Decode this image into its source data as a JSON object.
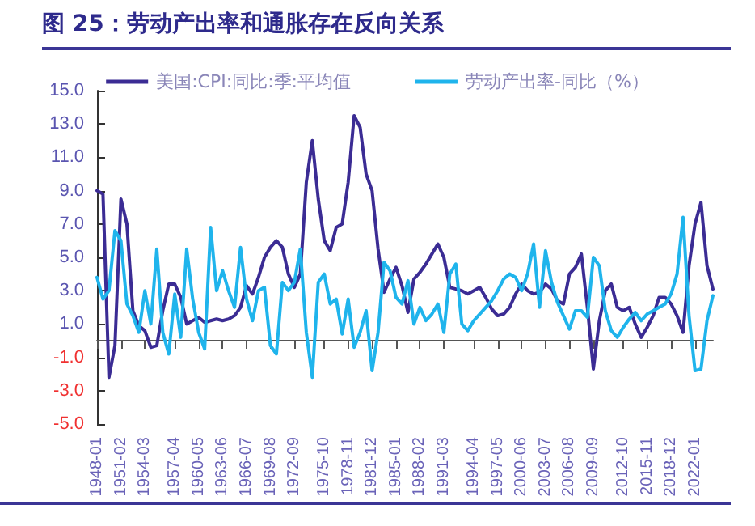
{
  "chart_data": {
    "type": "line",
    "title": "图 25：劳动产出率和通胀存在反向关系",
    "categories": [
      "1948-01",
      null,
      null,
      null,
      "1951-02",
      null,
      null,
      null,
      "1954-03",
      null,
      null,
      null,
      null,
      "1957-04",
      null,
      null,
      null,
      "1960-05",
      null,
      null,
      null,
      "1963-06",
      null,
      null,
      null,
      "1966-07",
      null,
      null,
      null,
      "1969-08",
      null,
      null,
      null,
      "1972-09",
      null,
      null,
      null,
      null,
      "1975-10",
      null,
      null,
      null,
      "1978-11",
      null,
      null,
      null,
      "1981-12",
      null,
      null,
      null,
      "1985-01",
      null,
      null,
      null,
      "1988-02",
      null,
      null,
      null,
      "1991-03",
      null,
      null,
      null,
      null,
      "1994-04",
      null,
      null,
      null,
      "1997-05",
      null,
      null,
      null,
      "2000-06",
      null,
      null,
      null,
      "2003-07",
      null,
      null,
      null,
      "2006-08",
      null,
      null,
      null,
      "2009-09",
      null,
      null,
      null,
      null,
      "2012-10",
      null,
      null,
      null,
      "2015-11",
      null,
      null,
      null,
      "2018-12",
      null,
      null,
      null,
      "2022-01",
      null,
      null,
      null
    ],
    "series": [
      {
        "name": "美国:CPI:同比:季:平均值",
        "color": "#3b2c94",
        "values": [
          9.0,
          8.8,
          -2.2,
          -0.3,
          8.5,
          7.0,
          1.8,
          0.9,
          0.6,
          -0.4,
          -0.3,
          1.8,
          3.4,
          3.4,
          2.6,
          1.0,
          1.2,
          1.4,
          1.1,
          1.2,
          1.3,
          1.2,
          1.3,
          1.5,
          2.0,
          3.3,
          2.8,
          3.8,
          5.0,
          5.6,
          6.0,
          5.6,
          4.0,
          3.2,
          4.0,
          9.5,
          12.0,
          8.5,
          6.0,
          5.4,
          6.8,
          7.0,
          9.5,
          13.5,
          12.8,
          10.0,
          9.0,
          5.5,
          2.9,
          3.7,
          4.4,
          3.3,
          1.7,
          3.7,
          4.1,
          4.6,
          5.2,
          5.8,
          5.0,
          3.2,
          3.1,
          3.0,
          2.8,
          3.0,
          3.2,
          2.6,
          1.9,
          1.5,
          1.6,
          2.0,
          2.8,
          3.4,
          3.0,
          2.8,
          2.9,
          3.4,
          3.1,
          2.4,
          2.2,
          4.0,
          4.4,
          5.2,
          2.0,
          -1.7,
          1.2,
          3.0,
          3.4,
          2.0,
          1.8,
          2.0,
          1.0,
          0.2,
          0.8,
          1.5,
          2.6,
          2.6,
          2.2,
          1.5,
          0.5,
          4.5,
          7.0,
          8.3,
          4.5,
          3.1
        ]
      },
      {
        "name": "劳动产出率-同比（%）",
        "color": "#1fb4ec",
        "values": [
          3.8,
          2.5,
          3.0,
          6.6,
          6.0,
          2.2,
          1.5,
          0.5,
          3.0,
          1.0,
          5.5,
          0.5,
          -0.8,
          2.8,
          0.2,
          5.5,
          2.5,
          0.5,
          -0.5,
          6.8,
          3.0,
          4.2,
          3.0,
          2.0,
          5.6,
          2.5,
          1.2,
          3.0,
          3.2,
          -0.3,
          -0.8,
          3.5,
          3.0,
          3.5,
          5.5,
          0.5,
          -2.2,
          3.5,
          4.0,
          2.2,
          2.5,
          0.4,
          2.5,
          -0.4,
          0.5,
          1.8,
          -1.8,
          0.5,
          4.7,
          4.2,
          2.6,
          2.2,
          3.6,
          1.0,
          2.0,
          1.2,
          1.6,
          2.2,
          0.5,
          4.0,
          4.6,
          1.0,
          0.6,
          1.2,
          1.6,
          2.0,
          2.4,
          3.0,
          3.7,
          4.0,
          3.8,
          3.0,
          4.0,
          5.8,
          2.0,
          5.4,
          3.5,
          2.3,
          1.5,
          0.7,
          1.8,
          1.8,
          1.4,
          5.0,
          4.5,
          1.8,
          0.6,
          0.2,
          0.8,
          1.3,
          1.7,
          1.2,
          1.6,
          1.8,
          2.0,
          2.2,
          2.8,
          4.0,
          7.4,
          1.5,
          -1.8,
          -1.7,
          1.2,
          2.7
        ]
      }
    ],
    "ylim": [
      -5,
      15
    ],
    "yticks": [
      {
        "value": -5,
        "label": "-5.0"
      },
      {
        "value": -3,
        "label": "-3.0"
      },
      {
        "value": -1,
        "label": "-1.0"
      },
      {
        "value": 1,
        "label": "1.0"
      },
      {
        "value": 3,
        "label": "3.0"
      },
      {
        "value": 5,
        "label": "5.0"
      },
      {
        "value": 7,
        "label": "7.0"
      },
      {
        "value": 9,
        "label": "9.0"
      },
      {
        "value": 11,
        "label": "11.0"
      },
      {
        "value": 13,
        "label": "13.0"
      },
      {
        "value": 15,
        "label": "15.0"
      }
    ],
    "grid": false,
    "legend": "top",
    "marker": "none",
    "line_style": "solid"
  }
}
